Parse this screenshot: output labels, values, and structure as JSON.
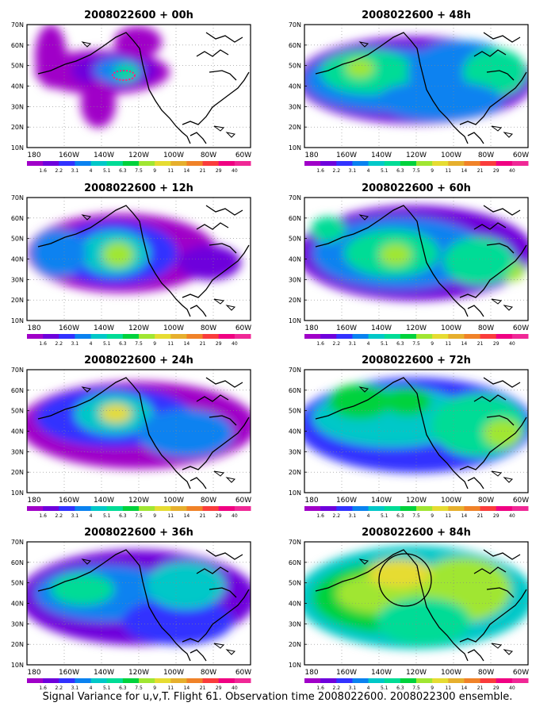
{
  "figure": {
    "caption": "Signal Variance for u,v,T. Flight 61. Observation time 2008022600. 2008022300 ensemble.",
    "panels": [
      {
        "title": "2008022600 + 00h"
      },
      {
        "title": "2008022600 + 48h"
      },
      {
        "title": "2008022600 + 12h"
      },
      {
        "title": "2008022600 + 60h"
      },
      {
        "title": "2008022600 + 24h"
      },
      {
        "title": "2008022600 + 72h"
      },
      {
        "title": "2008022600 + 36h"
      },
      {
        "title": "2008022600 + 84h"
      }
    ],
    "lat_labels": [
      "70N",
      "60N",
      "50N",
      "40N",
      "30N",
      "20N",
      "10N"
    ],
    "lon_labels": [
      "180",
      "160W",
      "140W",
      "120W",
      "100W",
      "80W",
      "60W"
    ],
    "colorbar": {
      "labels": [
        "1.6",
        "2.2",
        "3.1",
        "4",
        "5.1",
        "6.3",
        "7.5",
        "9",
        "11",
        "14",
        "21",
        "29",
        "40"
      ],
      "colors": [
        "#a000c8",
        "#6e00dc",
        "#3232ff",
        "#0a82f0",
        "#00c8c8",
        "#00dc96",
        "#00d23c",
        "#a0e632",
        "#e6dc32",
        "#e6af2d",
        "#f08228",
        "#fa3c3c",
        "#f00082",
        "#f02896"
      ]
    }
  }
}
